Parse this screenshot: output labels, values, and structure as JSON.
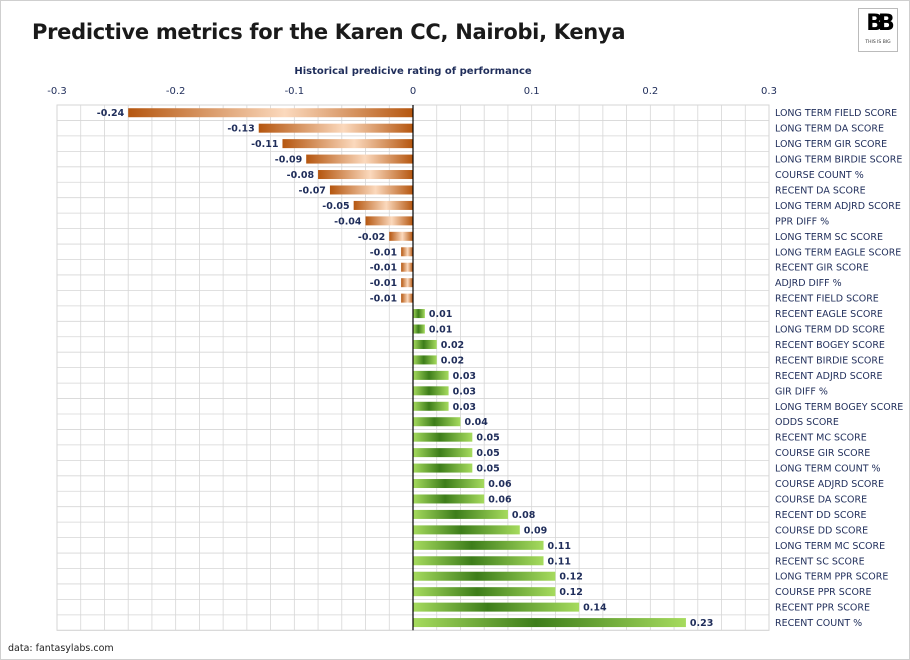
{
  "title": "Predictive metrics for the Karen CC, Nairobi, Kenya",
  "logo": {
    "mark": "BB",
    "sub": "THIS IS BIG"
  },
  "source": "data: fantasylabs.com",
  "colors": {
    "negative_dark": "#b5560f",
    "negative_light": "#fbd9bd",
    "positive_dark": "#3d7d1a",
    "positive_light": "#a6db5e",
    "text": "#1f2d5a",
    "grid": "#d6d6d6"
  },
  "chart_data": {
    "type": "bar",
    "orientation": "horizontal",
    "title": "Predictive metrics for the Karen CC, Nairobi, Kenya",
    "xlabel": "Historical predicive rating of performance",
    "ylabel": "",
    "xlim": [
      -0.3,
      0.3
    ],
    "xticks": [
      -0.3,
      -0.2,
      -0.1,
      0,
      0.1,
      0.2,
      0.3
    ],
    "xtick_labels": [
      "-0.3",
      "-0.2",
      "-0.1",
      "0",
      "0.1",
      "0.2",
      "0.3"
    ],
    "axis_position": "top",
    "grid": true,
    "legend": "none",
    "categories": [
      "LONG TERM FIELD SCORE",
      "LONG TERM DA SCORE",
      "LONG TERM GIR SCORE",
      "LONG TERM BIRDIE SCORE",
      "COURSE COUNT %",
      "RECENT DA SCORE",
      "LONG TERM ADJRD SCORE",
      "PPR DIFF %",
      "LONG TERM SC SCORE",
      "LONG TERM EAGLE SCORE",
      "RECENT GIR SCORE",
      "ADJRD DIFF %",
      "RECENT FIELD SCORE",
      "RECENT EAGLE SCORE",
      "LONG TERM DD SCORE",
      "RECENT BOGEY SCORE",
      "RECENT BIRDIE SCORE",
      "RECENT ADJRD SCORE",
      "GIR DIFF %",
      "LONG TERM BOGEY SCORE",
      "ODDS SCORE",
      "RECENT MC SCORE",
      "COURSE GIR SCORE",
      "LONG TERM COUNT %",
      "COURSE ADJRD SCORE",
      "COURSE DA SCORE",
      "RECENT DD SCORE",
      "COURSE DD SCORE",
      "LONG TERM MC SCORE",
      "RECENT SC SCORE",
      "LONG TERM PPR SCORE",
      "COURSE PPR SCORE",
      "RECENT PPR SCORE",
      "RECENT COUNT %"
    ],
    "values": [
      -0.24,
      -0.13,
      -0.11,
      -0.09,
      -0.08,
      -0.07,
      -0.05,
      -0.04,
      -0.02,
      -0.01,
      -0.01,
      -0.01,
      -0.01,
      0.01,
      0.01,
      0.02,
      0.02,
      0.03,
      0.03,
      0.03,
      0.04,
      0.05,
      0.05,
      0.05,
      0.06,
      0.06,
      0.08,
      0.09,
      0.11,
      0.11,
      0.12,
      0.12,
      0.14,
      0.23
    ],
    "value_labels": [
      "-0.24",
      "-0.13",
      "-0.11",
      "-0.09",
      "-0.08",
      "-0.07",
      "-0.05",
      "-0.04",
      "-0.02",
      "-0.01",
      "-0.01",
      "-0.01",
      "-0.01",
      "0.01",
      "0.01",
      "0.02",
      "0.02",
      "0.03",
      "0.03",
      "0.03",
      "0.04",
      "0.05",
      "0.05",
      "0.05",
      "0.06",
      "0.06",
      "0.08",
      "0.09",
      "0.11",
      "0.11",
      "0.12",
      "0.12",
      "0.14",
      "0.23"
    ]
  }
}
